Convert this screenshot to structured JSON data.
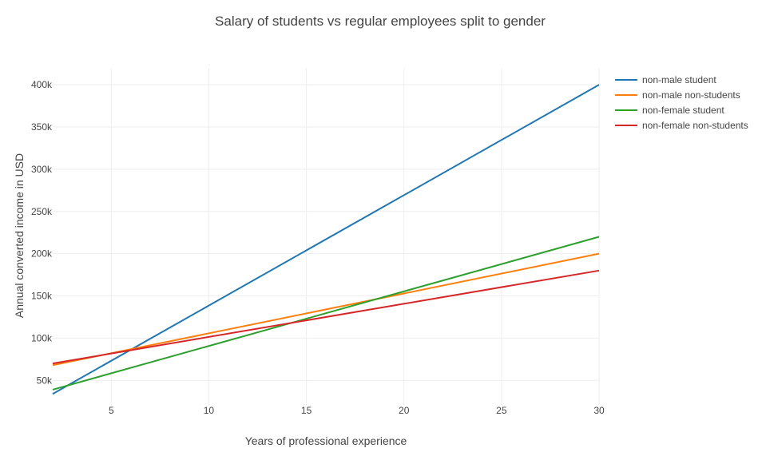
{
  "chart_data": {
    "type": "line",
    "title": "Salary of students vs regular employees split to gender",
    "xlabel": "Years of professional experience",
    "ylabel": "Annual converted income in USD",
    "xlim": [
      2,
      30
    ],
    "ylim": [
      20000,
      420000
    ],
    "x_ticks": [
      5,
      10,
      15,
      20,
      25,
      30
    ],
    "x_tick_labels": [
      "5",
      "10",
      "15",
      "20",
      "25",
      "30"
    ],
    "y_ticks": [
      50000,
      100000,
      150000,
      200000,
      250000,
      300000,
      350000,
      400000
    ],
    "y_tick_labels": [
      "50k",
      "100k",
      "150k",
      "200k",
      "250k",
      "300k",
      "350k",
      "400k"
    ],
    "grid": true,
    "legend_position": "top-right",
    "series": [
      {
        "name": "non-male student",
        "color": "#1f77b4",
        "x": [
          2,
          30
        ],
        "y": [
          34000,
          400000
        ]
      },
      {
        "name": "non-male non-students",
        "color": "#ff7f0e",
        "x": [
          2,
          30
        ],
        "y": [
          68000,
          200000
        ]
      },
      {
        "name": "non-female student",
        "color": "#2ca02c",
        "x": [
          2,
          30
        ],
        "y": [
          39000,
          220000
        ]
      },
      {
        "name": "non-female non-students",
        "color": "#d62728",
        "x": [
          2,
          30
        ],
        "y": [
          70000,
          180000
        ]
      }
    ]
  }
}
